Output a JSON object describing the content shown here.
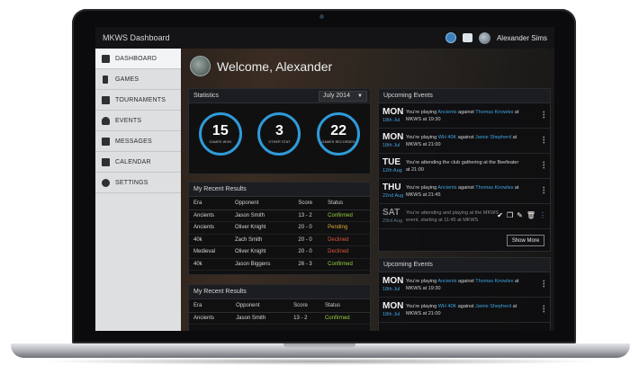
{
  "app": {
    "title": "MKWS Dashboard",
    "user_name": "Alexander Sims"
  },
  "sidebar": {
    "items": [
      {
        "label": "DASHBOARD",
        "icon": "monitor-icon",
        "active": true
      },
      {
        "label": "GAMES",
        "icon": "chess-piece-icon"
      },
      {
        "label": "TOURNAMENTS",
        "icon": "grid-icon"
      },
      {
        "label": "EVENTS",
        "icon": "person-icon"
      },
      {
        "label": "MESSAGES",
        "icon": "chat-icon"
      },
      {
        "label": "CALENDAR",
        "icon": "calendar-icon"
      },
      {
        "label": "SETTINGS",
        "icon": "gear-icon"
      }
    ]
  },
  "welcome": {
    "text": "Welcome, Alexander"
  },
  "statistics": {
    "title": "Statistics",
    "period": "July 2014",
    "stats": [
      {
        "value": "15",
        "label": "GAMES WON"
      },
      {
        "value": "3",
        "label": "OTHER STAT"
      },
      {
        "value": "22",
        "label": "GAMES RECORDED"
      }
    ],
    "accent_color": "#2f9bd9"
  },
  "results1": {
    "title": "My Recent Results",
    "columns": [
      "Era",
      "Opponent",
      "Score",
      "Status"
    ],
    "rows": [
      {
        "era": "Ancients",
        "opponent": "Jason Smith",
        "score": "13 - 2",
        "status": "Confirmed",
        "kind": "confirmed"
      },
      {
        "era": "Ancients",
        "opponent": "Oliver Knight",
        "score": "20 - 0",
        "status": "Pending",
        "kind": "pending"
      },
      {
        "era": "40k",
        "opponent": "Zach Smith",
        "score": "20 - 0",
        "status": "Declined",
        "kind": "declined"
      },
      {
        "era": "Medieval",
        "opponent": "Oliver Knight",
        "score": "20 - 0",
        "status": "Declined",
        "kind": "declined"
      },
      {
        "era": "40k",
        "opponent": "Jason Biggens",
        "score": "26 - 3",
        "status": "Confirmed",
        "kind": "confirmed"
      }
    ]
  },
  "results2": {
    "title": "My Recent Results",
    "columns": [
      "Era",
      "Opponent",
      "Score",
      "Status"
    ],
    "rows": [
      {
        "era": "Ancients",
        "opponent": "Jason Smith",
        "score": "13 - 2",
        "status": "Confirmed",
        "kind": "confirmed"
      }
    ]
  },
  "events1": {
    "title": "Upcoming Events",
    "more_label": "Show More",
    "items": [
      {
        "day": "MON",
        "date": "18th Jul",
        "pre": "You're playing ",
        "a": "Ancients",
        "mid": " against ",
        "b": "Thomas Knowles",
        "post": " at",
        "line2": "MKWS at 19:30"
      },
      {
        "day": "MON",
        "date": "18th Jul",
        "pre": "You're playing ",
        "a": "WH 40K",
        "mid": " against ",
        "b": "Jamie Shepherd",
        "post": " at",
        "line2": "MKWS at 21:00"
      },
      {
        "day": "TUE",
        "date": "12th Aug",
        "pre": "You're attending the club gathering at the Beefeater",
        "a": "",
        "mid": "",
        "b": "",
        "post": "",
        "line2": "at 21:00"
      },
      {
        "day": "THU",
        "date": "22nd Aug",
        "pre": "You're playing ",
        "a": "Ancients",
        "mid": " against ",
        "b": "Thomas Knowles",
        "post": " at",
        "line2": "MKWS at 21:45"
      },
      {
        "day": "SAT",
        "date": "23rd Aug",
        "pre": "You're attending and playing at the MKWS",
        "a": "",
        "mid": "",
        "b": "",
        "post": "",
        "line2": "event, starting at 11:45 at MKWS",
        "muted": true
      }
    ]
  },
  "events2": {
    "title": "Upcoming Events",
    "items": [
      {
        "day": "MON",
        "date": "18th Jul",
        "pre": "You're playing ",
        "a": "Ancients",
        "mid": " against ",
        "b": "Thomas Knowles",
        "post": " at",
        "line2": "MKWS at 19:30"
      },
      {
        "day": "MON",
        "date": "18th Jul",
        "pre": "You're playing ",
        "a": "WH 40K",
        "mid": " against ",
        "b": "Jamie Shepherd",
        "post": " at",
        "line2": "MKWS at 21:00"
      }
    ]
  }
}
